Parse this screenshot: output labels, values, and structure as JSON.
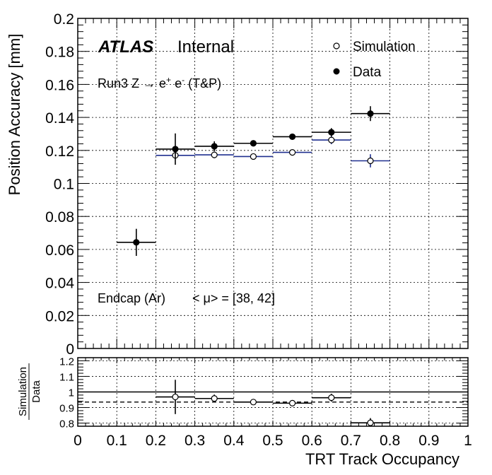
{
  "chart_data": [
    {
      "type": "scatter",
      "panel": "main",
      "ylabel": "Position Accuracy [mm]",
      "xlim": [
        0,
        1
      ],
      "ylim": [
        0,
        0.2
      ],
      "x_ticks": [
        "0",
        "0.1",
        "0.2",
        "0.3",
        "0.4",
        "0.5",
        "0.6",
        "0.7",
        "0.8",
        "0.9",
        "1"
      ],
      "y_ticks": [
        "0",
        "0.02",
        "0.04",
        "0.06",
        "0.08",
        "0.1",
        "0.12",
        "0.14",
        "0.16",
        "0.18",
        "0.2"
      ],
      "grid": true,
      "legend_position": "top-right",
      "atlas_label": "ATLAS",
      "atlas_sublabel": "Internal",
      "annotation_process_pre": "Run3 Z ",
      "annotation_process_arrow": "→",
      "annotation_process_e1": " e",
      "annotation_process_plus": "+",
      "annotation_process_e2": " e",
      "annotation_process_minus": "-",
      "annotation_process_post": " (T&P)",
      "annotation_region": "Endcap (Ar)",
      "annotation_pileup": "< μ> = [38, 42]",
      "series": [
        {
          "name": "Simulation",
          "marker": "open-circle",
          "color": "#000000",
          "xerr_color": "#1f2f8f",
          "x": [
            0.25,
            0.35,
            0.45,
            0.55,
            0.65,
            0.75
          ],
          "xerr": [
            0.05,
            0.05,
            0.05,
            0.05,
            0.05,
            0.05
          ],
          "y": [
            0.117,
            0.1173,
            0.1163,
            0.1188,
            0.1263,
            0.1137
          ],
          "yerr": [
            0.002,
            0.002,
            0.001,
            0.001,
            0.0025,
            0.004
          ]
        },
        {
          "name": "Data",
          "marker": "filled-circle",
          "color": "#000000",
          "x": [
            0.15,
            0.25,
            0.35,
            0.45,
            0.55,
            0.65,
            0.75
          ],
          "xerr": [
            0.05,
            0.05,
            0.05,
            0.05,
            0.05,
            0.05,
            0.05
          ],
          "y": [
            0.0643,
            0.1208,
            0.1225,
            0.1243,
            0.1283,
            0.131,
            0.1423
          ],
          "yerr": [
            0.0082,
            0.0095,
            0.003,
            0.0015,
            0.0015,
            0.0025,
            0.0045
          ]
        }
      ]
    },
    {
      "type": "scatter",
      "panel": "ratio",
      "xlabel": "TRT Track Occupancy",
      "ylabel_numerator": "Simulation",
      "ylabel_denominator": "Data",
      "xlim": [
        0,
        1
      ],
      "ylim": [
        0.78,
        1.22
      ],
      "x_ticks": [
        "0",
        "0.1",
        "0.2",
        "0.3",
        "0.4",
        "0.5",
        "0.6",
        "0.7",
        "0.8",
        "0.9",
        "1"
      ],
      "y_ticks": [
        "0.8",
        "0.9",
        "1",
        "1.1",
        "1.2"
      ],
      "grid": true,
      "reference_line": 1.0,
      "mean_line": 0.935,
      "series": [
        {
          "name": "Simulation/Data",
          "marker": "open-circle",
          "x": [
            0.25,
            0.35,
            0.45,
            0.55,
            0.65,
            0.75
          ],
          "xerr": [
            0.05,
            0.05,
            0.05,
            0.05,
            0.05,
            0.05
          ],
          "y": [
            0.968,
            0.958,
            0.935,
            0.928,
            0.963,
            0.802
          ],
          "yerr": [
            0.11,
            0.025,
            0.01,
            0.01,
            0.025,
            0.03
          ]
        }
      ]
    }
  ]
}
